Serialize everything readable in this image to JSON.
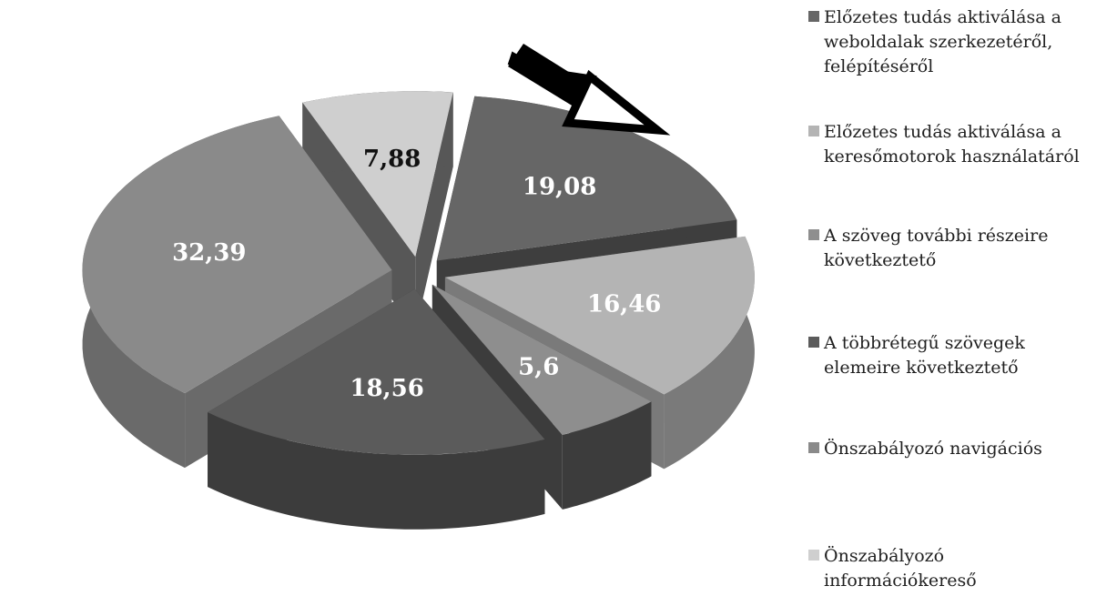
{
  "chart_data": {
    "type": "pie",
    "title": "",
    "style": "3d-exploded",
    "legend_position": "right",
    "series": [
      {
        "label": "Előzetes tudás aktiválása a weboldalak szerkezetéről, felépítéséről",
        "value": 19.08,
        "display": "19,08",
        "color": "#666666",
        "side": "#3e3e3e",
        "text_color": "#ffffff"
      },
      {
        "label": "Előzetes tudás aktiválása a keresőmotorok használatáról",
        "value": 16.46,
        "display": "16,46",
        "color": "#b4b4b4",
        "side": "#7a7a7a",
        "text_color": "#ffffff"
      },
      {
        "label": "A szöveg további részeire következtető",
        "value": 5.6,
        "display": "5,6",
        "color": "#8e8e8e",
        "side": "#3c3c3c",
        "text_color": "#ffffff"
      },
      {
        "label": "A többrétegű szövegek elemeire következtető",
        "value": 18.56,
        "display": "18,56",
        "color": "#5b5b5b",
        "side": "#3c3c3c",
        "text_color": "#ffffff"
      },
      {
        "label": "Önszabályozó navigációs",
        "value": 32.39,
        "display": "32,39",
        "color": "#8a8a8a",
        "side": "#6a6a6a",
        "text_color": "#ffffff"
      },
      {
        "label": "Önszabályozó információkereső",
        "value": 7.88,
        "display": "7,88",
        "color": "#cfcfcf",
        "side": "#575757",
        "text_color": "#111111"
      }
    ]
  },
  "legend": {
    "items": [
      {
        "lines": [
          "Előzetes tudás aktiválása a",
          "weboldalak szerkezetéről,",
          "felépítéséről"
        ],
        "color": "#666666"
      },
      {
        "lines": [
          "Előzetes tudás aktiválása a",
          "keresőmotorok használatáról"
        ],
        "color": "#b4b4b4"
      },
      {
        "lines": [
          "A szöveg további részeire",
          "következtető"
        ],
        "color": "#8e8e8e"
      },
      {
        "lines": [
          "A többrétegű szövegek",
          "elemeire következtető"
        ],
        "color": "#5b5b5b"
      },
      {
        "lines": [
          "Önszabályozó navigációs"
        ],
        "color": "#8a8a8a"
      },
      {
        "lines": [
          "Önszabályozó",
          "információkereső"
        ],
        "color": "#cfcfcf"
      }
    ]
  },
  "annotation": {
    "arrow_icon": "pointer-arrow-icon",
    "points_to": "Előzetes tudás aktiválása a weboldalak szerkezetéről, felépítéséről"
  }
}
